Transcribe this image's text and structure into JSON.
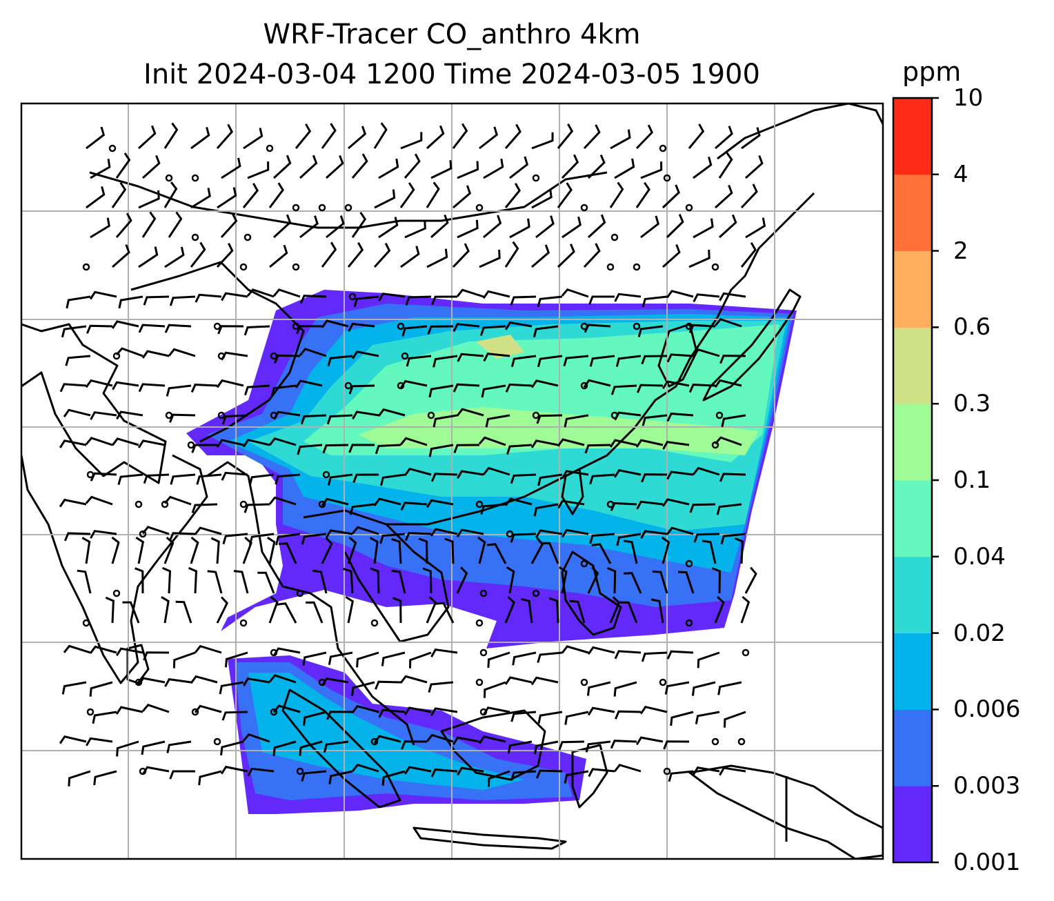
{
  "title_line1": "WRF-Tracer CO_anthro 4km",
  "title_line2": "Init 2024-03-04 1200 Time 2024-03-05 1900",
  "colorbar": {
    "units": "ppm",
    "ticks": [
      "0.001",
      "0.003",
      "0.006",
      "0.02",
      "0.04",
      "0.1",
      "0.3",
      "0.6",
      "2",
      "4",
      "10"
    ],
    "colors": [
      "#6329fb",
      "#3771f5",
      "#04b3ea",
      "#2fdad5",
      "#64f8be",
      "#9ffb96",
      "#d0e086",
      "#ffae5e",
      "#ff7138",
      "#fb2b15"
    ]
  },
  "map": {
    "field": "CO_anthro tracer concentration",
    "overlays": [
      "coastlines",
      "country-borders",
      "gridlines",
      "wind-barbs"
    ]
  }
}
